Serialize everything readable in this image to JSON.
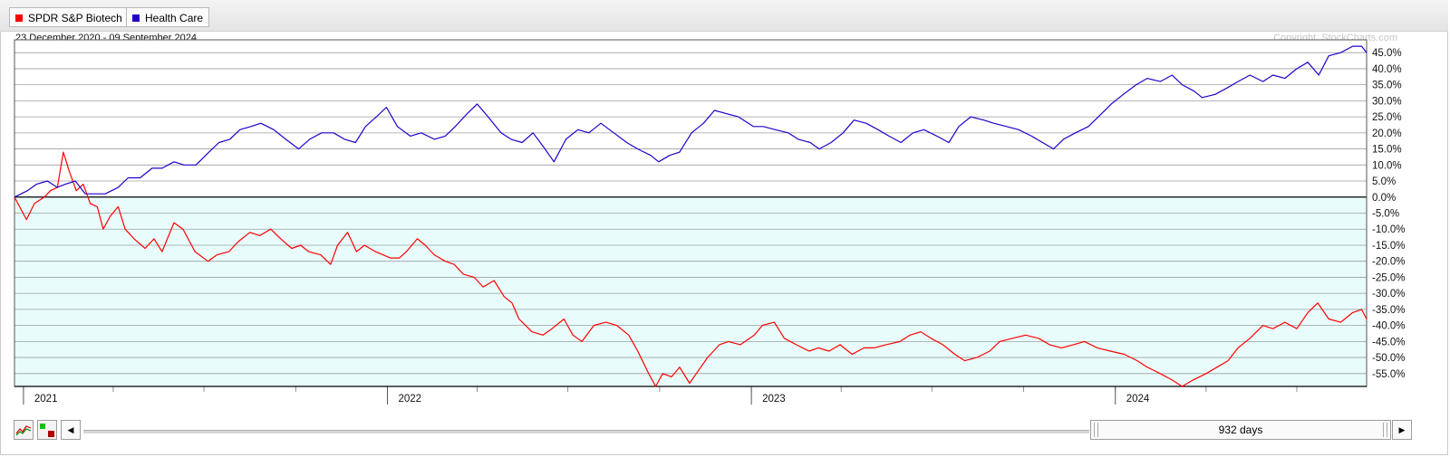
{
  "legend": [
    {
      "label": "SPDR S&P Biotech",
      "color": "#ff0000"
    },
    {
      "label": "Health Care",
      "color": "#2200cc"
    }
  ],
  "date_range": "23 December 2020 - 09 September 2024",
  "copyright": "Copyright, StockCharts.com",
  "slider": {
    "label": "932 days",
    "prev_icon": "left-triangle-icon",
    "next_icon": "right-triangle-icon"
  },
  "tools": {
    "performance_icon": "performance-chart-icon",
    "style_icon": "chart-style-icon"
  },
  "colors": {
    "positive_bg": "#ffffff",
    "negative_bg": "#e8fcfc",
    "grid": "#9aa0a0",
    "zero_line": "#000000",
    "biotech": "#ff0000",
    "health_care": "#2200cc"
  },
  "chart_data": {
    "type": "line",
    "title": "",
    "xlabel": "",
    "ylabel": "",
    "x_ticks": [
      "2021",
      "2022",
      "2023",
      "2024"
    ],
    "y_ticks": [
      "45.0%",
      "40.0%",
      "35.0%",
      "30.0%",
      "25.0%",
      "20.0%",
      "15.0%",
      "10.0%",
      "5.0%",
      "0.0%",
      "-5.0%",
      "-10.0%",
      "-15.0%",
      "-20.0%",
      "-25.0%",
      "-30.0%",
      "-35.0%",
      "-40.0%",
      "-45.0%",
      "-50.0%",
      "-55.0%"
    ],
    "ylim": [
      -59,
      49
    ],
    "xlim": [
      "2020-12-23",
      "2024-09-09"
    ],
    "grid": true,
    "legend_position": "top-left",
    "series": [
      {
        "name": "SPDR S&P Biotech",
        "color": "#ff0000",
        "points": [
          [
            "2020-12-23",
            0
          ],
          [
            "2021-01-04",
            -7
          ],
          [
            "2021-01-12",
            -2
          ],
          [
            "2021-01-22",
            0
          ],
          [
            "2021-01-28",
            2
          ],
          [
            "2021-02-04",
            3
          ],
          [
            "2021-02-10",
            14
          ],
          [
            "2021-02-16",
            8
          ],
          [
            "2021-02-23",
            2
          ],
          [
            "2021-03-02",
            4
          ],
          [
            "2021-03-09",
            -2
          ],
          [
            "2021-03-16",
            -3
          ],
          [
            "2021-03-22",
            -10
          ],
          [
            "2021-03-29",
            -6
          ],
          [
            "2021-04-06",
            -3
          ],
          [
            "2021-04-13",
            -10
          ],
          [
            "2021-04-22",
            -13
          ],
          [
            "2021-05-03",
            -16
          ],
          [
            "2021-05-12",
            -13
          ],
          [
            "2021-05-20",
            -17
          ],
          [
            "2021-06-01",
            -8
          ],
          [
            "2021-06-10",
            -10
          ],
          [
            "2021-06-22",
            -17
          ],
          [
            "2021-07-05",
            -20
          ],
          [
            "2021-07-14",
            -18
          ],
          [
            "2021-07-26",
            -17
          ],
          [
            "2021-08-04",
            -14
          ],
          [
            "2021-08-16",
            -11
          ],
          [
            "2021-08-26",
            -12
          ],
          [
            "2021-09-06",
            -10
          ],
          [
            "2021-09-16",
            -13
          ],
          [
            "2021-09-27",
            -16
          ],
          [
            "2021-10-06",
            -15
          ],
          [
            "2021-10-14",
            -17
          ],
          [
            "2021-10-26",
            -18
          ],
          [
            "2021-11-05",
            -21
          ],
          [
            "2021-11-12",
            -15
          ],
          [
            "2021-11-22",
            -11
          ],
          [
            "2021-12-01",
            -17
          ],
          [
            "2021-12-09",
            -15
          ],
          [
            "2021-12-20",
            -17
          ],
          [
            "2022-01-04",
            -19
          ],
          [
            "2022-01-13",
            -19
          ],
          [
            "2022-01-20",
            -17
          ],
          [
            "2022-01-31",
            -13
          ],
          [
            "2022-02-08",
            -15
          ],
          [
            "2022-02-17",
            -18
          ],
          [
            "2022-02-28",
            -20
          ],
          [
            "2022-03-09",
            -21
          ],
          [
            "2022-03-18",
            -24
          ],
          [
            "2022-03-29",
            -25
          ],
          [
            "2022-04-07",
            -28
          ],
          [
            "2022-04-18",
            -26
          ],
          [
            "2022-04-28",
            -31
          ],
          [
            "2022-05-06",
            -33
          ],
          [
            "2022-05-13",
            -38
          ],
          [
            "2022-05-26",
            -42
          ],
          [
            "2022-06-06",
            -43
          ],
          [
            "2022-06-15",
            -41
          ],
          [
            "2022-06-27",
            -38
          ],
          [
            "2022-07-06",
            -43
          ],
          [
            "2022-07-15",
            -45
          ],
          [
            "2022-07-27",
            -40
          ],
          [
            "2022-08-08",
            -39
          ],
          [
            "2022-08-19",
            -40
          ],
          [
            "2022-08-31",
            -43
          ],
          [
            "2022-09-09",
            -48
          ],
          [
            "2022-09-20",
            -55
          ],
          [
            "2022-09-27",
            -59
          ],
          [
            "2022-10-04",
            -55
          ],
          [
            "2022-10-13",
            -56
          ],
          [
            "2022-10-21",
            -53
          ],
          [
            "2022-10-31",
            -58
          ],
          [
            "2022-11-09",
            -54
          ],
          [
            "2022-11-18",
            -50
          ],
          [
            "2022-11-30",
            -46
          ],
          [
            "2022-12-09",
            -45
          ],
          [
            "2022-12-21",
            -46
          ],
          [
            "2023-01-04",
            -43
          ],
          [
            "2023-01-12",
            -40
          ],
          [
            "2023-01-24",
            -39
          ],
          [
            "2023-02-03",
            -44
          ],
          [
            "2023-02-15",
            -46
          ],
          [
            "2023-02-28",
            -48
          ],
          [
            "2023-03-09",
            -47
          ],
          [
            "2023-03-20",
            -48
          ],
          [
            "2023-03-31",
            -46
          ],
          [
            "2023-04-12",
            -49
          ],
          [
            "2023-04-24",
            -47
          ],
          [
            "2023-05-04",
            -47
          ],
          [
            "2023-05-16",
            -46
          ],
          [
            "2023-05-30",
            -45
          ],
          [
            "2023-06-09",
            -43
          ],
          [
            "2023-06-20",
            -42
          ],
          [
            "2023-06-30",
            -44
          ],
          [
            "2023-07-12",
            -46
          ],
          [
            "2023-07-24",
            -49
          ],
          [
            "2023-08-03",
            -51
          ],
          [
            "2023-08-15",
            -50
          ],
          [
            "2023-08-28",
            -48
          ],
          [
            "2023-09-07",
            -45
          ],
          [
            "2023-09-20",
            -44
          ],
          [
            "2023-10-03",
            -43
          ],
          [
            "2023-10-16",
            -44
          ],
          [
            "2023-10-27",
            -46
          ],
          [
            "2023-11-08",
            -47
          ],
          [
            "2023-11-20",
            -46
          ],
          [
            "2023-12-01",
            -45
          ],
          [
            "2023-12-14",
            -47
          ],
          [
            "2023-12-27",
            -48
          ],
          [
            "2024-01-10",
            -49
          ],
          [
            "2024-01-23",
            -51
          ],
          [
            "2024-02-02",
            -53
          ],
          [
            "2024-02-15",
            -55
          ],
          [
            "2024-02-27",
            -57
          ],
          [
            "2024-03-08",
            -59
          ],
          [
            "2024-03-19",
            -57
          ],
          [
            "2024-04-01",
            -55
          ],
          [
            "2024-04-12",
            -53
          ],
          [
            "2024-04-23",
            -51
          ],
          [
            "2024-05-03",
            -47
          ],
          [
            "2024-05-15",
            -44
          ],
          [
            "2024-05-28",
            -40
          ],
          [
            "2024-06-07",
            -41
          ],
          [
            "2024-06-19",
            -39
          ],
          [
            "2024-07-01",
            -41
          ],
          [
            "2024-07-12",
            -36
          ],
          [
            "2024-07-22",
            -33
          ],
          [
            "2024-08-02",
            -38
          ],
          [
            "2024-08-14",
            -39
          ],
          [
            "2024-08-26",
            -36
          ],
          [
            "2024-09-04",
            -35
          ],
          [
            "2024-09-09",
            -38
          ]
        ]
      },
      {
        "name": "Health Care",
        "color": "#2200cc",
        "points": [
          [
            "2020-12-23",
            0
          ],
          [
            "2021-01-05",
            2
          ],
          [
            "2021-01-14",
            4
          ],
          [
            "2021-01-25",
            5
          ],
          [
            "2021-02-04",
            3
          ],
          [
            "2021-02-12",
            4
          ],
          [
            "2021-02-22",
            5
          ],
          [
            "2021-03-04",
            1
          ],
          [
            "2021-03-12",
            1
          ],
          [
            "2021-03-24",
            1
          ],
          [
            "2021-04-06",
            3
          ],
          [
            "2021-04-16",
            6
          ],
          [
            "2021-04-28",
            6
          ],
          [
            "2021-05-10",
            9
          ],
          [
            "2021-05-20",
            9
          ],
          [
            "2021-06-01",
            11
          ],
          [
            "2021-06-11",
            10
          ],
          [
            "2021-06-23",
            10
          ],
          [
            "2021-07-06",
            14
          ],
          [
            "2021-07-16",
            17
          ],
          [
            "2021-07-27",
            18
          ],
          [
            "2021-08-06",
            21
          ],
          [
            "2021-08-17",
            22
          ],
          [
            "2021-08-27",
            23
          ],
          [
            "2021-09-09",
            21
          ],
          [
            "2021-09-21",
            18
          ],
          [
            "2021-10-04",
            15
          ],
          [
            "2021-10-15",
            18
          ],
          [
            "2021-10-27",
            20
          ],
          [
            "2021-11-08",
            20
          ],
          [
            "2021-11-19",
            18
          ],
          [
            "2021-11-30",
            17
          ],
          [
            "2021-12-10",
            22
          ],
          [
            "2021-12-21",
            25
          ],
          [
            "2021-12-31",
            28
          ],
          [
            "2022-01-11",
            22
          ],
          [
            "2022-01-24",
            19
          ],
          [
            "2022-02-04",
            20
          ],
          [
            "2022-02-17",
            18
          ],
          [
            "2022-02-28",
            19
          ],
          [
            "2022-03-10",
            22
          ],
          [
            "2022-03-22",
            26
          ],
          [
            "2022-04-01",
            29
          ],
          [
            "2022-04-12",
            25
          ],
          [
            "2022-04-25",
            20
          ],
          [
            "2022-05-05",
            18
          ],
          [
            "2022-05-16",
            17
          ],
          [
            "2022-05-27",
            20
          ],
          [
            "2022-06-08",
            15
          ],
          [
            "2022-06-17",
            11
          ],
          [
            "2022-06-29",
            18
          ],
          [
            "2022-07-11",
            21
          ],
          [
            "2022-07-22",
            20
          ],
          [
            "2022-08-03",
            23
          ],
          [
            "2022-08-16",
            20
          ],
          [
            "2022-08-29",
            17
          ],
          [
            "2022-09-09",
            15
          ],
          [
            "2022-09-22",
            13
          ],
          [
            "2022-09-30",
            11
          ],
          [
            "2022-10-11",
            13
          ],
          [
            "2022-10-21",
            14
          ],
          [
            "2022-11-02",
            20
          ],
          [
            "2022-11-14",
            23
          ],
          [
            "2022-11-25",
            27
          ],
          [
            "2022-12-07",
            26
          ],
          [
            "2022-12-19",
            25
          ],
          [
            "2023-01-03",
            22
          ],
          [
            "2023-01-13",
            22
          ],
          [
            "2023-01-25",
            21
          ],
          [
            "2023-02-07",
            20
          ],
          [
            "2023-02-17",
            18
          ],
          [
            "2023-03-01",
            17
          ],
          [
            "2023-03-10",
            15
          ],
          [
            "2023-03-22",
            17
          ],
          [
            "2023-04-03",
            20
          ],
          [
            "2023-04-14",
            24
          ],
          [
            "2023-04-26",
            23
          ],
          [
            "2023-05-08",
            21
          ],
          [
            "2023-05-19",
            19
          ],
          [
            "2023-05-31",
            17
          ],
          [
            "2023-06-12",
            20
          ],
          [
            "2023-06-23",
            21
          ],
          [
            "2023-07-06",
            19
          ],
          [
            "2023-07-18",
            17
          ],
          [
            "2023-07-28",
            22
          ],
          [
            "2023-08-09",
            25
          ],
          [
            "2023-08-22",
            24
          ],
          [
            "2023-09-01",
            23
          ],
          [
            "2023-09-14",
            22
          ],
          [
            "2023-09-26",
            21
          ],
          [
            "2023-10-09",
            19
          ],
          [
            "2023-10-20",
            17
          ],
          [
            "2023-10-31",
            15
          ],
          [
            "2023-11-10",
            18
          ],
          [
            "2023-11-22",
            20
          ],
          [
            "2023-12-05",
            22
          ],
          [
            "2023-12-15",
            25
          ],
          [
            "2023-12-28",
            29
          ],
          [
            "2024-01-09",
            32
          ],
          [
            "2024-01-22",
            35
          ],
          [
            "2024-02-02",
            37
          ],
          [
            "2024-02-15",
            36
          ],
          [
            "2024-02-27",
            38
          ],
          [
            "2024-03-08",
            35
          ],
          [
            "2024-03-20",
            33
          ],
          [
            "2024-03-28",
            31
          ],
          [
            "2024-04-10",
            32
          ],
          [
            "2024-04-22",
            34
          ],
          [
            "2024-05-03",
            36
          ],
          [
            "2024-05-15",
            38
          ],
          [
            "2024-05-28",
            36
          ],
          [
            "2024-06-07",
            38
          ],
          [
            "2024-06-19",
            37
          ],
          [
            "2024-07-01",
            40
          ],
          [
            "2024-07-12",
            42
          ],
          [
            "2024-07-23",
            38
          ],
          [
            "2024-08-02",
            44
          ],
          [
            "2024-08-14",
            45
          ],
          [
            "2024-08-26",
            47
          ],
          [
            "2024-09-04",
            47
          ],
          [
            "2024-09-09",
            45
          ]
        ]
      }
    ]
  }
}
